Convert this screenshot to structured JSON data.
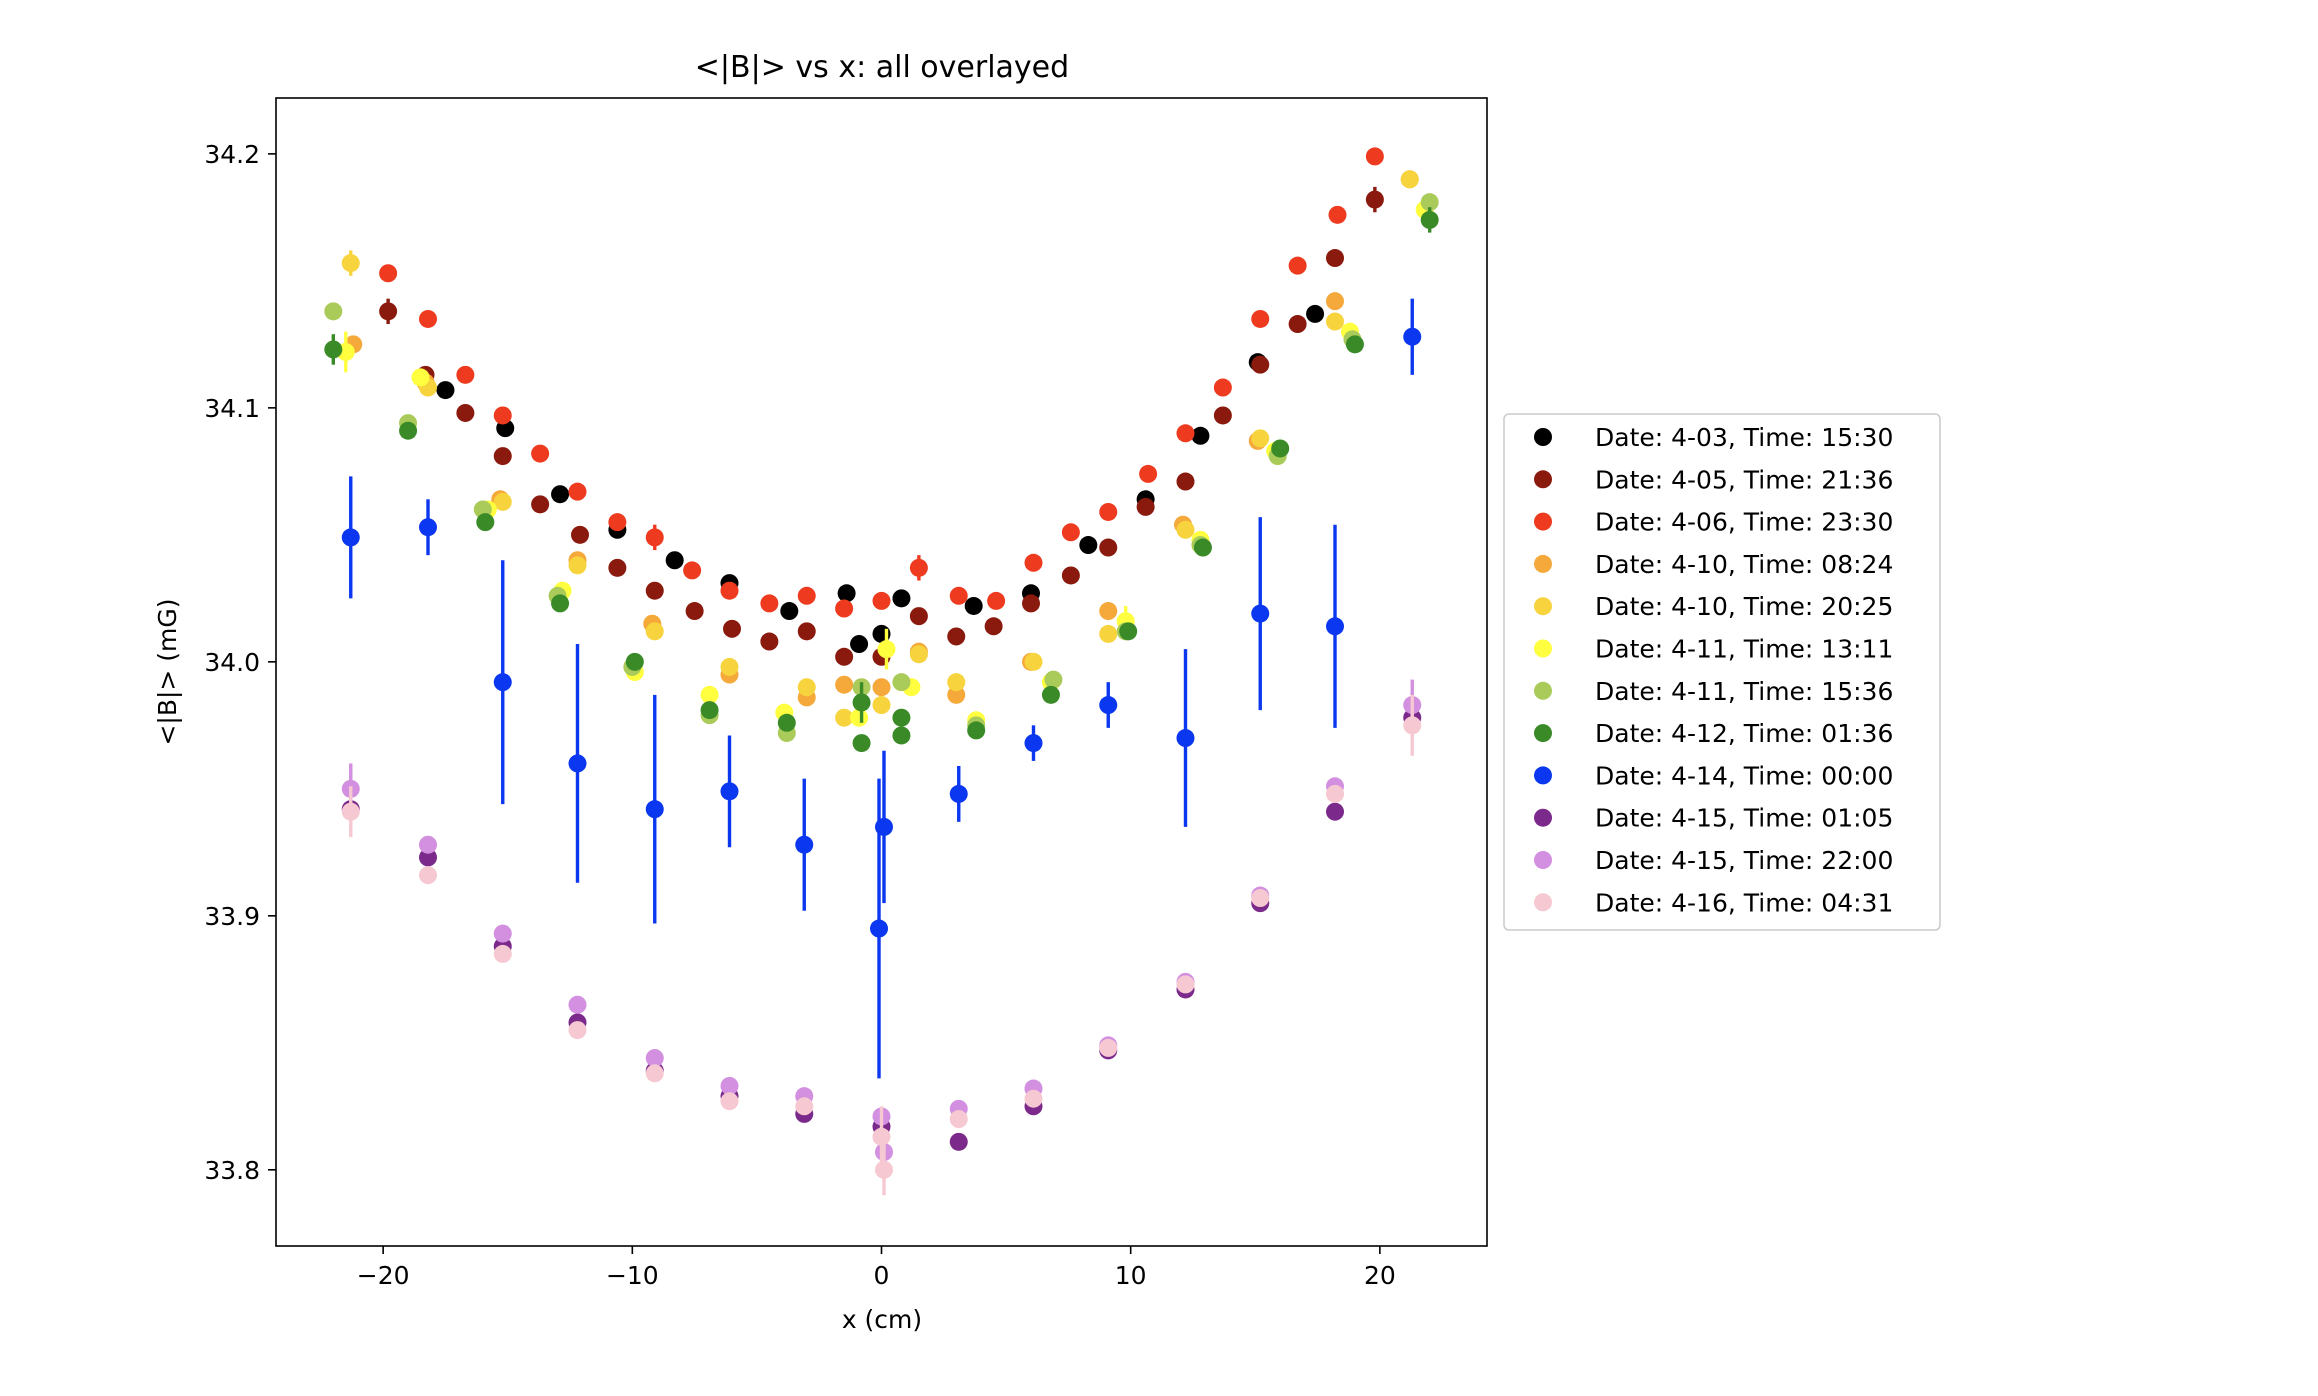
{
  "chart_data": {
    "type": "scatter",
    "title": "<|B|> vs x: all overlayed",
    "xlabel": "x (cm)",
    "ylabel": "<|B|> (mG)",
    "xlim": [
      -24.3,
      24.3
    ],
    "ylim": [
      33.77,
      34.222
    ],
    "xticks": [
      -20,
      -10,
      0,
      10,
      20
    ],
    "xtick_labels": [
      "−20",
      "−10",
      "0",
      "10",
      "20"
    ],
    "yticks": [
      33.8,
      33.9,
      34.0,
      34.1,
      34.2
    ],
    "ytick_labels": [
      "33.8",
      "33.9",
      "34.0",
      "34.1",
      "34.2"
    ],
    "grid": false,
    "legend_position": "outside-right",
    "series": [
      {
        "name": "Date: 4-03, Time: 15:30",
        "color": "#000000",
        "points": [
          [
            -17.5,
            34.107
          ],
          [
            -15.1,
            34.092
          ],
          [
            -12.9,
            34.066
          ],
          [
            -10.6,
            34.052
          ],
          [
            -8.3,
            34.04
          ],
          [
            -6.1,
            34.031
          ],
          [
            -3.7,
            34.02
          ],
          [
            -1.4,
            34.027
          ],
          [
            -0.9,
            34.007
          ],
          [
            0.0,
            34.011
          ],
          [
            0.8,
            34.025
          ],
          [
            3.7,
            34.022
          ],
          [
            6.0,
            34.027
          ],
          [
            8.3,
            34.046
          ],
          [
            10.6,
            34.064
          ],
          [
            12.8,
            34.089
          ],
          [
            15.1,
            34.118
          ],
          [
            17.4,
            34.137
          ]
        ],
        "err": []
      },
      {
        "name": "Date: 4-05, Time: 21:36",
        "color": "#8b1a0e",
        "points": [
          [
            -19.8,
            34.138
          ],
          [
            -18.3,
            34.113
          ],
          [
            -16.7,
            34.098
          ],
          [
            -15.2,
            34.081
          ],
          [
            -13.7,
            34.062
          ],
          [
            -12.1,
            34.05
          ],
          [
            -10.6,
            34.037
          ],
          [
            -9.1,
            34.028
          ],
          [
            -7.5,
            34.02
          ],
          [
            -6.0,
            34.013
          ],
          [
            -4.5,
            34.008
          ],
          [
            -3.0,
            34.012
          ],
          [
            -1.5,
            34.002
          ],
          [
            0.0,
            34.002
          ],
          [
            1.5,
            34.018
          ],
          [
            3.0,
            34.01
          ],
          [
            4.5,
            34.014
          ],
          [
            6.0,
            34.023
          ],
          [
            7.6,
            34.034
          ],
          [
            9.1,
            34.045
          ],
          [
            10.6,
            34.061
          ],
          [
            12.2,
            34.071
          ],
          [
            13.7,
            34.097
          ],
          [
            15.2,
            34.117
          ],
          [
            16.7,
            34.133
          ],
          [
            18.2,
            34.159
          ],
          [
            19.8,
            34.182
          ]
        ],
        "err": [
          [
            -19.8,
            0.005
          ],
          [
            19.8,
            0.005
          ]
        ]
      },
      {
        "name": "Date: 4-06, Time: 23:30",
        "color": "#ee3a1e",
        "points": [
          [
            -19.8,
            34.153
          ],
          [
            -18.2,
            34.135
          ],
          [
            -16.7,
            34.113
          ],
          [
            -15.2,
            34.097
          ],
          [
            -13.7,
            34.082
          ],
          [
            -12.2,
            34.067
          ],
          [
            -10.6,
            34.055
          ],
          [
            -9.1,
            34.049
          ],
          [
            -7.6,
            34.036
          ],
          [
            -6.1,
            34.028
          ],
          [
            -4.5,
            34.023
          ],
          [
            -3.0,
            34.026
          ],
          [
            -1.5,
            34.021
          ],
          [
            0.0,
            34.024
          ],
          [
            1.5,
            34.037
          ],
          [
            3.1,
            34.026
          ],
          [
            4.6,
            34.024
          ],
          [
            6.1,
            34.039
          ],
          [
            7.6,
            34.051
          ],
          [
            9.1,
            34.059
          ],
          [
            10.7,
            34.074
          ],
          [
            12.2,
            34.09
          ],
          [
            13.7,
            34.108
          ],
          [
            15.2,
            34.135
          ],
          [
            16.7,
            34.156
          ],
          [
            18.3,
            34.176
          ],
          [
            19.8,
            34.199
          ]
        ],
        "err": [
          [
            -9.1,
            0.005
          ],
          [
            1.5,
            0.005
          ]
        ]
      },
      {
        "name": "Date: 4-10, Time: 08:24",
        "color": "#f5a93a",
        "points": [
          [
            -21.2,
            34.125
          ],
          [
            -18.3,
            34.11
          ],
          [
            -15.3,
            34.064
          ],
          [
            -12.2,
            34.04
          ],
          [
            -9.2,
            34.015
          ],
          [
            -6.1,
            33.995
          ],
          [
            -3.0,
            33.986
          ],
          [
            -1.5,
            33.991
          ],
          [
            0.0,
            33.99
          ],
          [
            1.5,
            34.004
          ],
          [
            3.0,
            33.987
          ],
          [
            6.0,
            34.0
          ],
          [
            9.1,
            34.02
          ],
          [
            12.1,
            34.054
          ],
          [
            15.1,
            34.087
          ],
          [
            18.2,
            34.142
          ],
          [
            21.2,
            34.19
          ]
        ],
        "err": []
      },
      {
        "name": "Date: 4-10, Time: 20:25",
        "color": "#f7d43e",
        "points": [
          [
            -21.3,
            34.157
          ],
          [
            -18.2,
            34.108
          ],
          [
            -15.2,
            34.063
          ],
          [
            -12.2,
            34.038
          ],
          [
            -9.1,
            34.012
          ],
          [
            -6.1,
            33.998
          ],
          [
            -3.0,
            33.99
          ],
          [
            -1.5,
            33.978
          ],
          [
            0.0,
            33.983
          ],
          [
            1.5,
            34.003
          ],
          [
            3.0,
            33.992
          ],
          [
            6.1,
            34.0
          ],
          [
            9.1,
            34.011
          ],
          [
            12.2,
            34.052
          ],
          [
            15.2,
            34.088
          ],
          [
            18.2,
            34.134
          ],
          [
            21.2,
            34.19
          ]
        ],
        "err": [
          [
            -21.3,
            0.005
          ]
        ]
      },
      {
        "name": "Date: 4-11, Time: 13:11",
        "color": "#ffff40",
        "points": [
          [
            -21.5,
            34.122
          ],
          [
            -18.5,
            34.112
          ],
          [
            -15.8,
            34.06
          ],
          [
            -12.8,
            34.028
          ],
          [
            -9.9,
            33.996
          ],
          [
            -6.9,
            33.987
          ],
          [
            -3.9,
            33.98
          ],
          [
            -0.9,
            33.978
          ],
          [
            0.2,
            34.005
          ],
          [
            1.2,
            33.99
          ],
          [
            3.8,
            33.977
          ],
          [
            6.8,
            33.992
          ],
          [
            9.8,
            34.016
          ],
          [
            12.8,
            34.048
          ],
          [
            15.8,
            34.083
          ],
          [
            18.8,
            34.13
          ],
          [
            21.8,
            34.178
          ]
        ],
        "err": [
          [
            -21.5,
            0.008
          ],
          [
            0.2,
            0.008
          ],
          [
            9.8,
            0.006
          ]
        ]
      },
      {
        "name": "Date: 4-11, Time: 15:36",
        "color": "#aacb59",
        "points": [
          [
            -22.0,
            34.138
          ],
          [
            -19.0,
            34.094
          ],
          [
            -16.0,
            34.06
          ],
          [
            -13.0,
            34.026
          ],
          [
            -10.0,
            33.998
          ],
          [
            -6.9,
            33.979
          ],
          [
            -3.8,
            33.972
          ],
          [
            -0.8,
            33.99
          ],
          [
            0.8,
            33.992
          ],
          [
            3.8,
            33.975
          ],
          [
            6.9,
            33.993
          ],
          [
            9.8,
            34.012
          ],
          [
            12.8,
            34.046
          ],
          [
            15.9,
            34.081
          ],
          [
            18.9,
            34.127
          ],
          [
            22.0,
            34.181
          ]
        ],
        "err": []
      },
      {
        "name": "Date: 4-12, Time: 01:36",
        "color": "#3a8b28",
        "points": [
          [
            -22.0,
            34.123
          ],
          [
            -19.0,
            34.091
          ],
          [
            -15.9,
            34.055
          ],
          [
            -12.9,
            34.023
          ],
          [
            -9.9,
            34.0
          ],
          [
            -6.9,
            33.981
          ],
          [
            -3.8,
            33.976
          ],
          [
            -0.8,
            33.984
          ],
          [
            -0.8,
            33.968
          ],
          [
            0.8,
            33.978
          ],
          [
            0.8,
            33.971
          ],
          [
            3.8,
            33.973
          ],
          [
            6.8,
            33.987
          ],
          [
            9.9,
            34.012
          ],
          [
            12.9,
            34.045
          ],
          [
            16.0,
            34.084
          ],
          [
            19.0,
            34.125
          ],
          [
            22.0,
            34.174
          ]
        ],
        "err": [
          [
            -22.0,
            0.006
          ],
          [
            -0.8,
            0.008
          ],
          [
            22.0,
            0.005
          ]
        ]
      },
      {
        "name": "Date: 4-14, Time: 00:00",
        "color": "#0a37ef",
        "points": [
          [
            -21.3,
            34.049
          ],
          [
            -18.2,
            34.053
          ],
          [
            -15.2,
            33.992
          ],
          [
            -12.2,
            33.96
          ],
          [
            -9.1,
            33.942
          ],
          [
            -6.1,
            33.949
          ],
          [
            -3.1,
            33.928
          ],
          [
            -0.1,
            33.895
          ],
          [
            0.1,
            33.935
          ],
          [
            3.1,
            33.948
          ],
          [
            6.1,
            33.968
          ],
          [
            9.1,
            33.983
          ],
          [
            12.2,
            33.97
          ],
          [
            15.2,
            34.019
          ],
          [
            18.2,
            34.014
          ],
          [
            21.3,
            34.128
          ]
        ],
        "err": [
          [
            -21.3,
            0.024
          ],
          [
            -18.2,
            0.011
          ],
          [
            -15.2,
            0.048
          ],
          [
            -12.2,
            0.047
          ],
          [
            -9.1,
            0.045
          ],
          [
            -6.1,
            0.022
          ],
          [
            -3.1,
            0.026
          ],
          [
            -0.1,
            0.059
          ],
          [
            0.1,
            0.03
          ],
          [
            3.1,
            0.011
          ],
          [
            6.1,
            0.007
          ],
          [
            9.1,
            0.009
          ],
          [
            12.2,
            0.035
          ],
          [
            15.2,
            0.038
          ],
          [
            18.2,
            0.04
          ],
          [
            21.3,
            0.015
          ]
        ]
      },
      {
        "name": "Date: 4-15, Time: 01:05",
        "color": "#7b2a8b",
        "points": [
          [
            -21.3,
            33.942
          ],
          [
            -18.2,
            33.923
          ],
          [
            -15.2,
            33.888
          ],
          [
            -12.2,
            33.858
          ],
          [
            -9.1,
            33.839
          ],
          [
            -6.1,
            33.829
          ],
          [
            -3.1,
            33.822
          ],
          [
            0.0,
            33.817
          ],
          [
            3.1,
            33.811
          ],
          [
            6.1,
            33.825
          ],
          [
            9.1,
            33.847
          ],
          [
            12.2,
            33.871
          ],
          [
            15.2,
            33.905
          ],
          [
            18.2,
            33.941
          ],
          [
            21.3,
            33.978
          ]
        ],
        "err": []
      },
      {
        "name": "Date: 4-15, Time: 22:00",
        "color": "#d38fe0",
        "points": [
          [
            -21.3,
            33.95
          ],
          [
            -18.2,
            33.928
          ],
          [
            -15.2,
            33.893
          ],
          [
            -12.2,
            33.865
          ],
          [
            -9.1,
            33.844
          ],
          [
            -6.1,
            33.833
          ],
          [
            -3.1,
            33.829
          ],
          [
            0.0,
            33.821
          ],
          [
            0.1,
            33.807
          ],
          [
            3.1,
            33.824
          ],
          [
            6.1,
            33.832
          ],
          [
            9.1,
            33.849
          ],
          [
            12.2,
            33.874
          ],
          [
            15.2,
            33.908
          ],
          [
            18.2,
            33.951
          ],
          [
            21.3,
            33.983
          ]
        ],
        "err": [
          [
            -21.3,
            0.01
          ],
          [
            21.3,
            0.01
          ]
        ]
      },
      {
        "name": "Date: 4-16, Time: 04:31",
        "color": "#f6c8d1",
        "points": [
          [
            -21.3,
            33.941
          ],
          [
            -18.2,
            33.916
          ],
          [
            -15.2,
            33.885
          ],
          [
            -12.2,
            33.855
          ],
          [
            -9.1,
            33.838
          ],
          [
            -6.1,
            33.827
          ],
          [
            -3.1,
            33.825
          ],
          [
            0.0,
            33.813
          ],
          [
            0.1,
            33.8
          ],
          [
            3.1,
            33.82
          ],
          [
            6.1,
            33.828
          ],
          [
            9.1,
            33.848
          ],
          [
            12.2,
            33.873
          ],
          [
            15.2,
            33.907
          ],
          [
            18.2,
            33.948
          ],
          [
            21.3,
            33.975
          ]
        ],
        "err": [
          [
            -21.3,
            0.01
          ],
          [
            0.0,
            0.012
          ],
          [
            0.1,
            0.01
          ],
          [
            21.3,
            0.012
          ]
        ]
      }
    ]
  }
}
